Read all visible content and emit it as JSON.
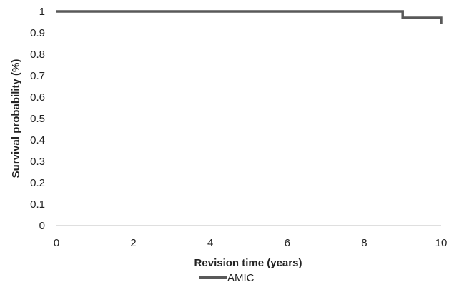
{
  "chart_data": {
    "type": "line",
    "step": true,
    "title": "",
    "xlabel": "Revision time (years)",
    "ylabel": "Survival probability (%)",
    "xlim": [
      0,
      10
    ],
    "ylim": [
      0,
      1
    ],
    "x_ticks": [
      0,
      2,
      4,
      6,
      8,
      10
    ],
    "y_ticks": [
      0,
      0.1,
      0.2,
      0.3,
      0.4,
      0.5,
      0.6,
      0.7,
      0.8,
      0.9,
      1
    ],
    "x_tick_labels": [
      "0",
      "2",
      "4",
      "6",
      "8",
      "10"
    ],
    "y_tick_labels": [
      "0",
      "0.1",
      "0.2",
      "0.3",
      "0.4",
      "0.5",
      "0.6",
      "0.7",
      "0.8",
      "0.9",
      "1"
    ],
    "grid": false,
    "legend_position": "bottom",
    "series": [
      {
        "name": "AMIC",
        "color": "#595959",
        "x": [
          0,
          9,
          9,
          10,
          10
        ],
        "y": [
          1,
          1,
          0.97,
          0.97,
          0.94
        ]
      }
    ]
  }
}
